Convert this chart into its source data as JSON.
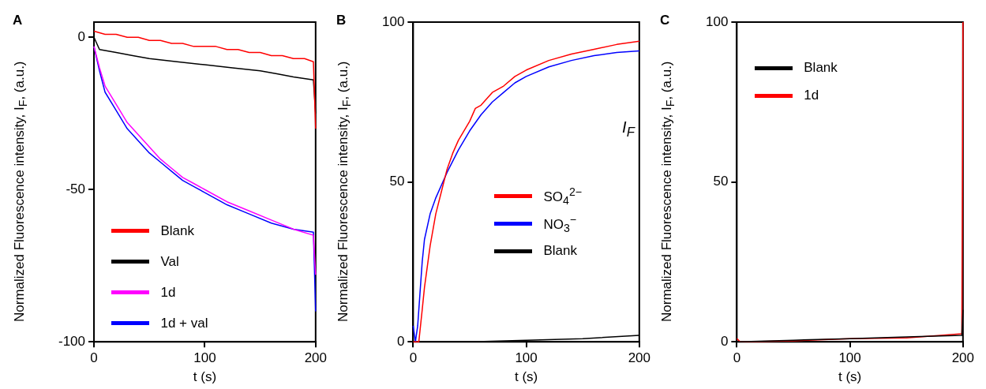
{
  "chart_data": [
    {
      "type": "line",
      "title": "A",
      "xlabel": "t (s)",
      "ylabel": "Normalized Fluorescence intensity, I$_{F}$, (a.u.)",
      "xlim": [
        0,
        200
      ],
      "xticks": [
        0,
        100,
        200
      ],
      "ylim": [
        -100,
        5
      ],
      "yticks": [
        -100,
        -50,
        0
      ],
      "grid": false,
      "legend": "bottom left",
      "series": [
        {
          "name": "Blank",
          "color": "#ff0000",
          "x": [
            0,
            10,
            20,
            30,
            40,
            50,
            60,
            70,
            80,
            90,
            100,
            110,
            120,
            130,
            140,
            150,
            160,
            170,
            180,
            190,
            198,
            200
          ],
          "values": [
            2,
            1,
            1,
            0,
            0,
            -1,
            -1,
            -2,
            -2,
            -3,
            -3,
            -3,
            -4,
            -4,
            -5,
            -5,
            -6,
            -6,
            -7,
            -7,
            -8,
            -30
          ]
        },
        {
          "name": "Val",
          "color": "#000000",
          "x": [
            0,
            5,
            20,
            35,
            50,
            75,
            100,
            125,
            150,
            165,
            180,
            198,
            200
          ],
          "values": [
            0,
            -4,
            -5,
            -6,
            -7,
            -8,
            -9,
            -10,
            -11,
            -12,
            -13,
            -14,
            -25
          ]
        },
        {
          "name": "1d",
          "color": "#ff00ff",
          "x": [
            0,
            5,
            10,
            20,
            30,
            40,
            50,
            60,
            70,
            80,
            90,
            100,
            120,
            140,
            160,
            180,
            198,
            200
          ],
          "values": [
            -3,
            -10,
            -16,
            -22,
            -28,
            -32,
            -36,
            -40,
            -43,
            -46,
            -48,
            -50,
            -54,
            -57,
            -60,
            -63,
            -65,
            -78
          ]
        },
        {
          "name": "1d + val",
          "color": "#0000ff",
          "x": [
            0,
            5,
            10,
            20,
            30,
            40,
            50,
            60,
            70,
            80,
            90,
            100,
            120,
            140,
            160,
            180,
            198,
            200
          ],
          "values": [
            -3,
            -11,
            -18,
            -24,
            -30,
            -34,
            -38,
            -41,
            -44,
            -47,
            -49,
            -51,
            -55,
            -58,
            -61,
            -63,
            -64,
            -90
          ]
        }
      ]
    },
    {
      "type": "line",
      "title": "B",
      "xlabel": "t (s)",
      "ylabel": "Normalized Fluorescence intensity, I$_{F}$, (a.u.)",
      "xlim": [
        0,
        200
      ],
      "xticks": [
        0,
        100,
        200
      ],
      "ylim": [
        0,
        100
      ],
      "yticks": [
        0,
        50,
        100
      ],
      "grid": false,
      "legend": "right",
      "annotations": [
        "I$_{F}$"
      ],
      "series": [
        {
          "name": "SO$_{4}$$^{2−}$",
          "color": "#ff0000",
          "x": [
            0,
            5,
            8,
            10,
            15,
            20,
            25,
            30,
            35,
            40,
            50,
            55,
            60,
            70,
            80,
            90,
            100,
            120,
            140,
            160,
            180,
            200
          ],
          "values": [
            0,
            0,
            10,
            17,
            30,
            40,
            47,
            54,
            59,
            63,
            69,
            73,
            74,
            78,
            80,
            83,
            85,
            88,
            90,
            91.5,
            93,
            94
          ]
        },
        {
          "name": "NO$_{3}$$^{−}$",
          "color": "#0000ff",
          "x": [
            0,
            2,
            4,
            6,
            8,
            10,
            15,
            20,
            30,
            40,
            50,
            60,
            70,
            80,
            90,
            100,
            120,
            140,
            160,
            180,
            200
          ],
          "values": [
            5,
            0,
            5,
            15,
            25,
            32,
            40,
            45,
            53,
            60,
            66,
            71,
            75,
            78,
            81,
            83,
            86,
            88,
            89.5,
            90.5,
            91
          ]
        },
        {
          "name": "Blank",
          "color": "#000000",
          "x": [
            0,
            50,
            100,
            150,
            200
          ],
          "values": [
            0,
            0,
            0.5,
            1,
            2
          ]
        }
      ]
    },
    {
      "type": "line",
      "title": "C",
      "xlabel": "t (s)",
      "ylabel": "Normalized Fluorescence intensity, I$_{F}$, (a.u.)",
      "xlim": [
        0,
        200
      ],
      "xticks": [
        0,
        100,
        200
      ],
      "ylim": [
        0,
        100
      ],
      "yticks": [
        0,
        50,
        100
      ],
      "grid": false,
      "legend": "top left",
      "series": [
        {
          "name": "Blank",
          "color": "#000000",
          "x": [
            0,
            50,
            100,
            150,
            199,
            200
          ],
          "values": [
            0,
            0.5,
            1,
            1.5,
            2,
            10
          ]
        },
        {
          "name": "1d",
          "color": "#ff0000",
          "x": [
            0,
            3,
            50,
            100,
            150,
            199,
            200
          ],
          "values": [
            1,
            0,
            0.3,
            1,
            1.2,
            2.5,
            100
          ]
        }
      ]
    }
  ]
}
